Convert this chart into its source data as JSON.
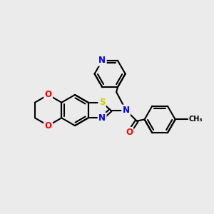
{
  "bg_color": "#ebebeb",
  "bond_color": "#000000",
  "bond_width": 1.5,
  "atom_colors": {
    "N": "#0000ee",
    "O": "#ff0000",
    "S": "#cccc00",
    "C": "#000000"
  },
  "figsize": [
    3.0,
    3.0
  ],
  "dpi": 100
}
